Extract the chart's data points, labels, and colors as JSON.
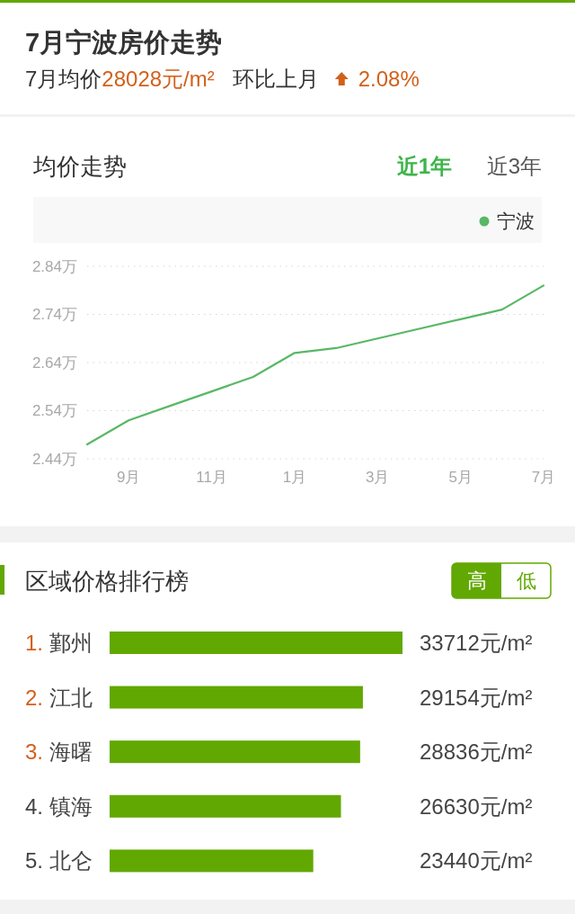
{
  "chart_data": [
    {
      "type": "other",
      "title": "7月宁波房价走势",
      "annotations": [
        "7月均价",
        "28028元/m²",
        "环比上月",
        "2.08%"
      ]
    },
    {
      "type": "line",
      "title": "均价走势",
      "annotations": [
        "近1年",
        "近3年"
      ],
      "categories": [
        null,
        "9月",
        null,
        "11月",
        null,
        "1月",
        null,
        "3月",
        null,
        "5月",
        null,
        "7月"
      ],
      "series": [
        {
          "name": "宁波",
          "color": "#58b866",
          "values": [
            2.47,
            2.52,
            2.55,
            2.58,
            2.61,
            2.66,
            2.67,
            2.69,
            2.71,
            2.73,
            2.75,
            2.8
          ]
        }
      ],
      "ylim": [
        2.44,
        2.84
      ],
      "yticks": [
        {
          "value": 2.44,
          "label": "2.44万"
        },
        {
          "value": 2.54,
          "label": "2.54万"
        },
        {
          "value": 2.64,
          "label": "2.64万"
        },
        {
          "value": 2.74,
          "label": "2.74万"
        },
        {
          "value": 2.84,
          "label": "2.84万"
        }
      ],
      "grid": "y",
      "legend": "top right"
    },
    {
      "type": "bar",
      "orientation": "horizontal",
      "title": "区域价格排行榜",
      "annotations": [
        "高",
        "低"
      ],
      "categories": [
        "1. 鄞州",
        "2. 江北",
        "3. 海曙",
        "4. 镇海",
        "5. 北仑"
      ],
      "values": [
        33712,
        29154,
        28836,
        26630,
        23440
      ],
      "color": "#62a802",
      "value_labels": [
        "33712元/m²",
        "29154元/m²",
        "28836元/m²",
        "26630元/m²",
        "23440元/m²"
      ],
      "tick_labels": "y"
    }
  ]
}
